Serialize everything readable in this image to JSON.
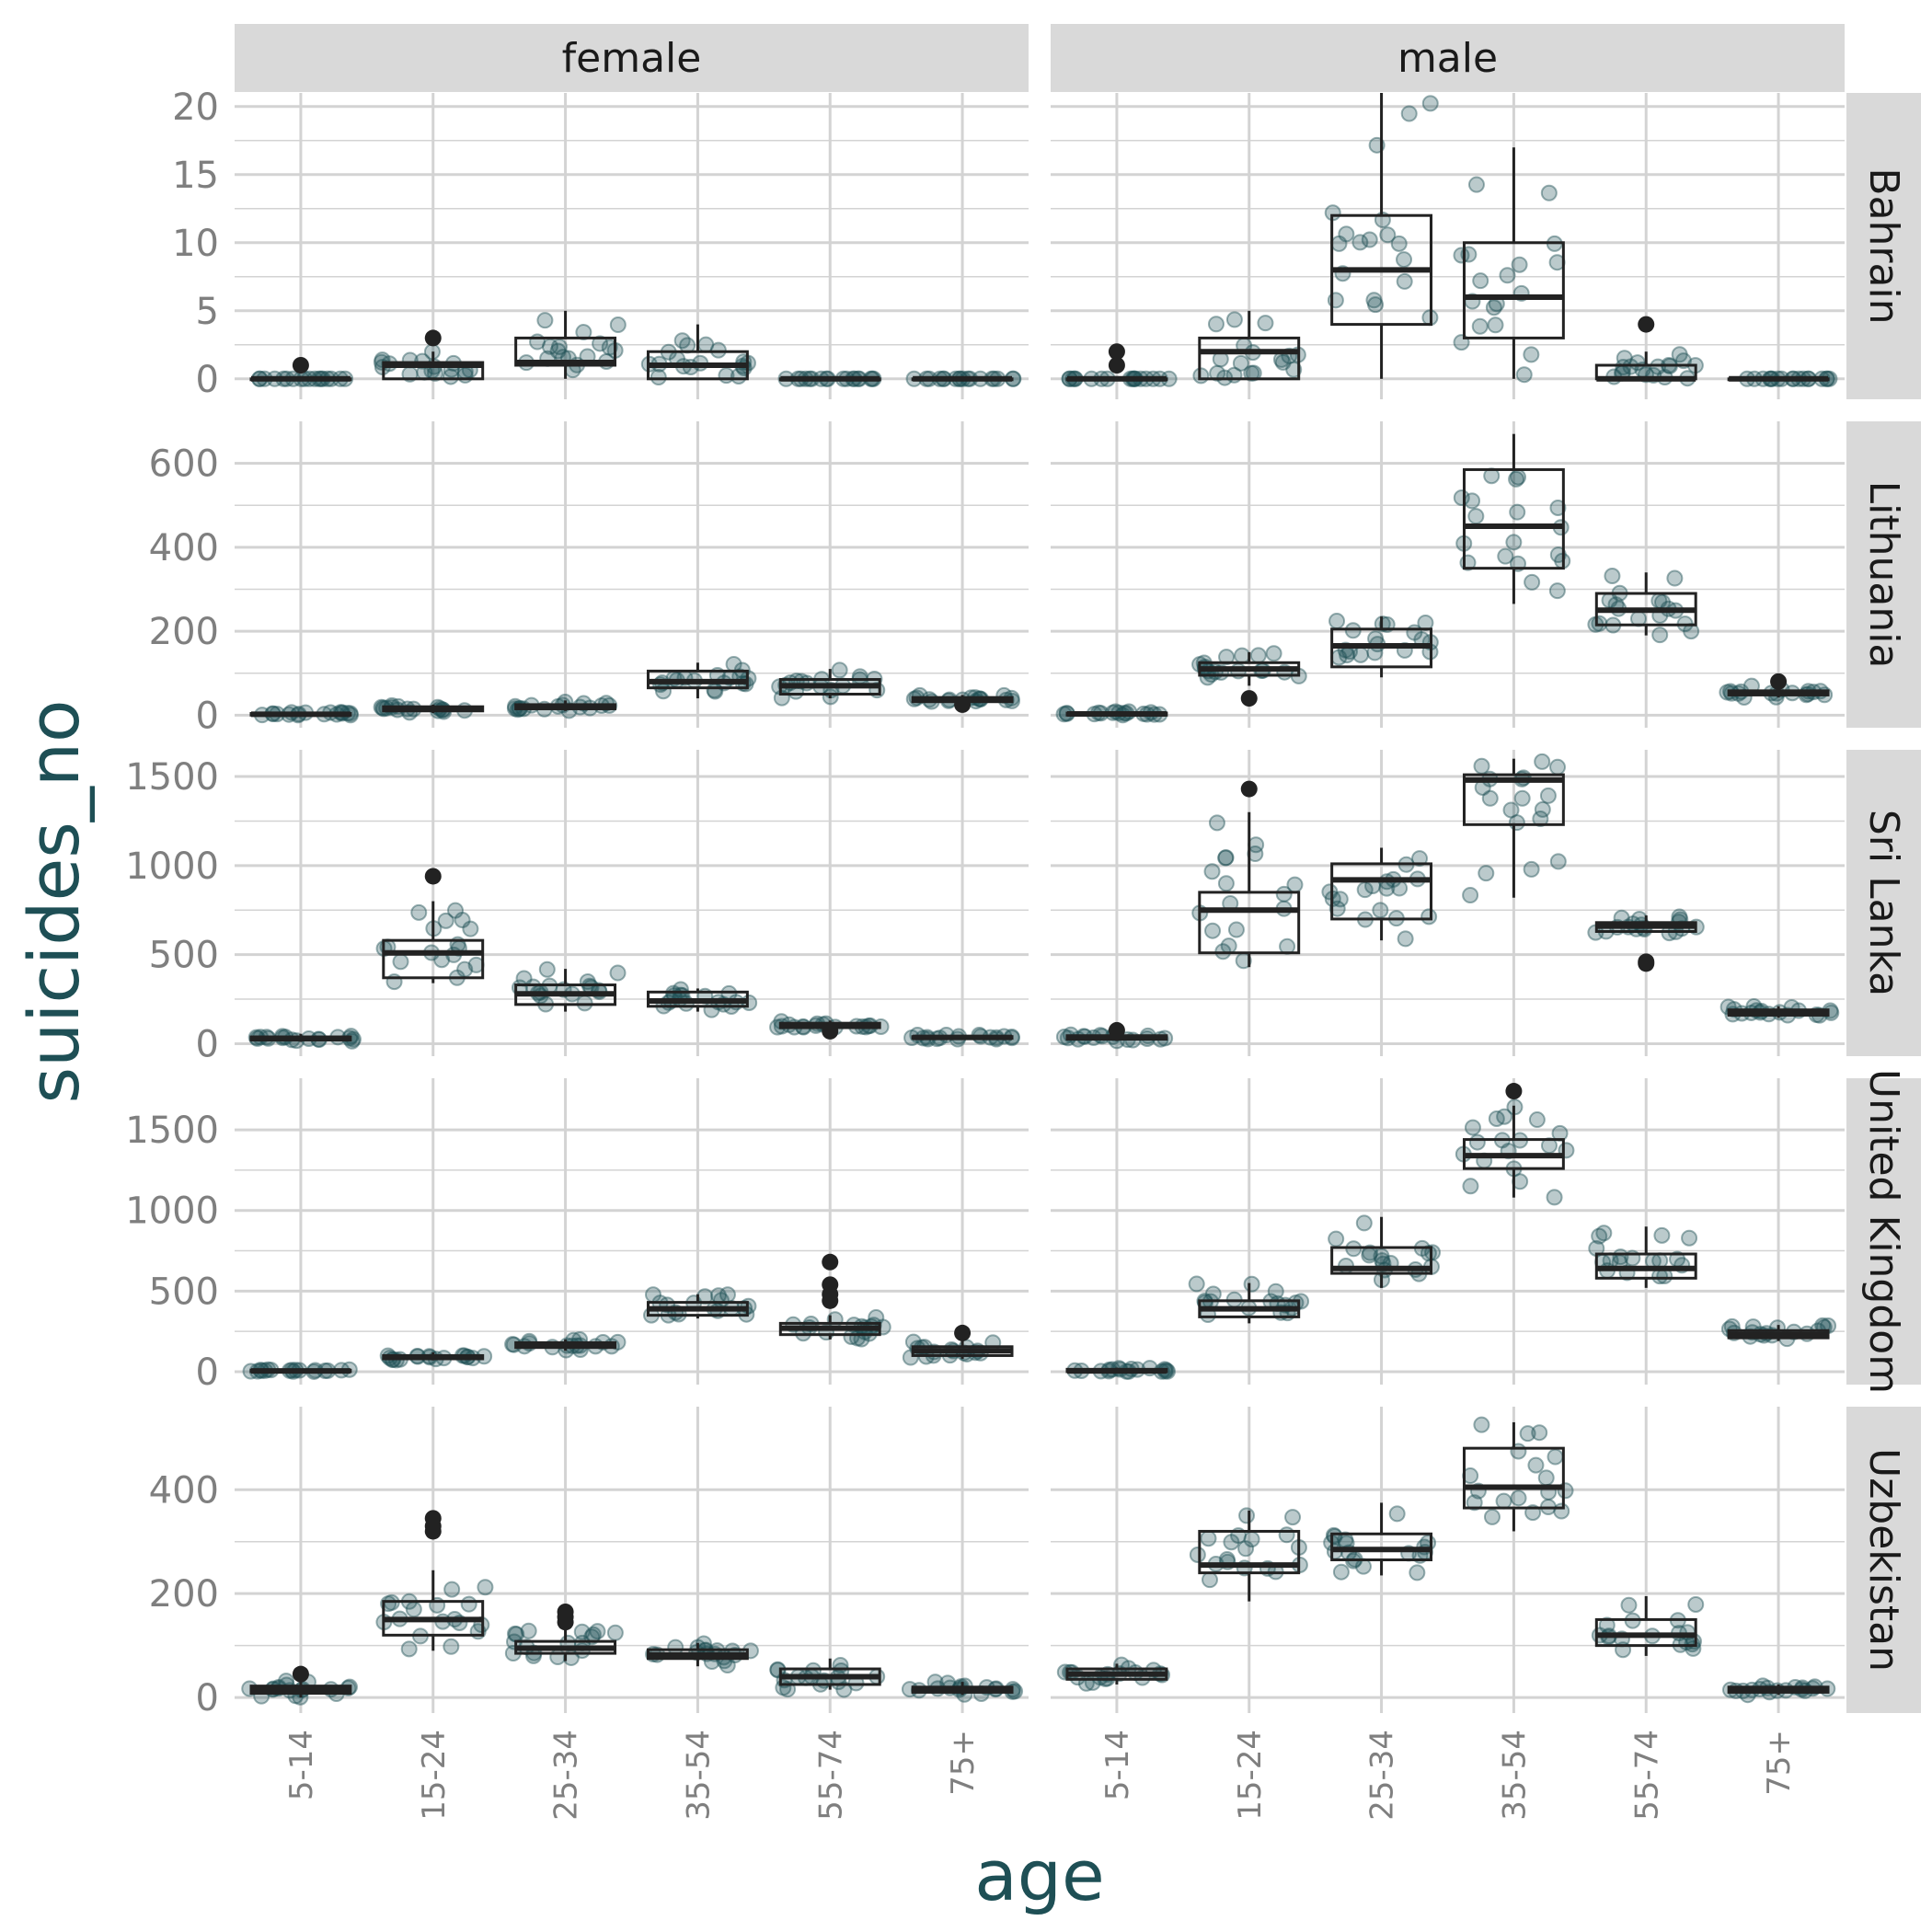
{
  "chart_data": {
    "type": "box",
    "xlabel": "age",
    "ylabel": "suicides_no",
    "categories": [
      "5-14",
      "15-24",
      "25-34",
      "35-54",
      "55-74",
      "75+"
    ],
    "columns": [
      "female",
      "male"
    ],
    "rows": [
      "Bahrain",
      "Lithuania",
      "Sri Lanka",
      "United Kingdom",
      "Uzbekistan"
    ],
    "colors": {
      "points": "#1e4f55",
      "box": "#222222",
      "strip": "#d9d9d9",
      "grid": "#d3d3d3"
    },
    "panels": [
      {
        "row": "Bahrain",
        "ylim": [
          -1.5,
          21
        ],
        "yticks": [
          0,
          5,
          10,
          15,
          20
        ],
        "female": [
          {
            "q1": 0,
            "median": 0,
            "q3": 0,
            "lo": 0,
            "hi": 0,
            "outliers": [
              1
            ]
          },
          {
            "q1": 0,
            "median": 1,
            "q3": 1.2,
            "lo": 0,
            "hi": 2,
            "outliers": [
              3
            ]
          },
          {
            "q1": 1,
            "median": 1.2,
            "q3": 3,
            "lo": 0,
            "hi": 5,
            "outliers": []
          },
          {
            "q1": 0,
            "median": 1,
            "q3": 2,
            "lo": 0,
            "hi": 4,
            "outliers": []
          },
          {
            "q1": 0,
            "median": 0,
            "q3": 0,
            "lo": 0,
            "hi": 0,
            "outliers": []
          },
          {
            "q1": 0,
            "median": 0,
            "q3": 0,
            "lo": 0,
            "hi": 0,
            "outliers": []
          }
        ],
        "male": [
          {
            "q1": 0,
            "median": 0,
            "q3": 0,
            "lo": 0,
            "hi": 0,
            "outliers": [
              1,
              2
            ]
          },
          {
            "q1": 0,
            "median": 2,
            "q3": 3,
            "lo": 0,
            "hi": 5,
            "outliers": []
          },
          {
            "q1": 4,
            "median": 8,
            "q3": 12,
            "lo": 0,
            "hi": 21,
            "outliers": []
          },
          {
            "q1": 3,
            "median": 6,
            "q3": 10,
            "lo": 0,
            "hi": 17,
            "outliers": []
          },
          {
            "q1": 0,
            "median": 0,
            "q3": 1,
            "lo": 0,
            "hi": 2,
            "outliers": [
              4
            ]
          },
          {
            "q1": 0,
            "median": 0,
            "q3": 0,
            "lo": 0,
            "hi": 0,
            "outliers": []
          }
        ]
      },
      {
        "row": "Lithuania",
        "ylim": [
          -30,
          700
        ],
        "yticks": [
          0,
          200,
          400,
          600
        ],
        "female": [
          {
            "q1": 0,
            "median": 2,
            "q3": 4,
            "lo": 0,
            "hi": 8,
            "outliers": []
          },
          {
            "q1": 10,
            "median": 15,
            "q3": 20,
            "lo": 5,
            "hi": 25,
            "outliers": []
          },
          {
            "q1": 15,
            "median": 20,
            "q3": 25,
            "lo": 10,
            "hi": 35,
            "outliers": []
          },
          {
            "q1": 65,
            "median": 80,
            "q3": 105,
            "lo": 40,
            "hi": 125,
            "outliers": []
          },
          {
            "q1": 50,
            "median": 70,
            "q3": 85,
            "lo": 40,
            "hi": 110,
            "outliers": []
          },
          {
            "q1": 32,
            "median": 38,
            "q3": 42,
            "lo": 30,
            "hi": 48,
            "outliers": [
              25
            ]
          }
        ],
        "male": [
          {
            "q1": 0,
            "median": 3,
            "q3": 5,
            "lo": 0,
            "hi": 10,
            "outliers": []
          },
          {
            "q1": 95,
            "median": 110,
            "q3": 125,
            "lo": 70,
            "hi": 150,
            "outliers": [
              40
            ]
          },
          {
            "q1": 115,
            "median": 165,
            "q3": 205,
            "lo": 90,
            "hi": 235,
            "outliers": []
          },
          {
            "q1": 350,
            "median": 450,
            "q3": 585,
            "lo": 265,
            "hi": 670,
            "outliers": []
          },
          {
            "q1": 215,
            "median": 250,
            "q3": 290,
            "lo": 190,
            "hi": 340,
            "outliers": []
          },
          {
            "q1": 48,
            "median": 52,
            "q3": 58,
            "lo": 42,
            "hi": 70,
            "outliers": [
              80
            ]
          }
        ]
      },
      {
        "row": "Sri Lanka",
        "ylim": [
          -70,
          1650
        ],
        "yticks": [
          0,
          500,
          1000,
          1500
        ],
        "female": [
          {
            "q1": 20,
            "median": 30,
            "q3": 38,
            "lo": 10,
            "hi": 55,
            "outliers": []
          },
          {
            "q1": 370,
            "median": 510,
            "q3": 580,
            "lo": 340,
            "hi": 800,
            "outliers": [
              940
            ]
          },
          {
            "q1": 220,
            "median": 280,
            "q3": 330,
            "lo": 180,
            "hi": 420,
            "outliers": []
          },
          {
            "q1": 210,
            "median": 240,
            "q3": 290,
            "lo": 180,
            "hi": 310,
            "outliers": []
          },
          {
            "q1": 90,
            "median": 105,
            "q3": 115,
            "lo": 80,
            "hi": 130,
            "outliers": [
              70
            ]
          },
          {
            "q1": 30,
            "median": 35,
            "q3": 40,
            "lo": 25,
            "hi": 50,
            "outliers": []
          }
        ],
        "male": [
          {
            "q1": 25,
            "median": 35,
            "q3": 45,
            "lo": 15,
            "hi": 60,
            "outliers": [
              75
            ]
          },
          {
            "q1": 510,
            "median": 750,
            "q3": 850,
            "lo": 430,
            "hi": 1300,
            "outliers": [
              1430
            ]
          },
          {
            "q1": 700,
            "median": 920,
            "q3": 1010,
            "lo": 580,
            "hi": 1100,
            "outliers": []
          },
          {
            "q1": 1230,
            "median": 1480,
            "q3": 1510,
            "lo": 820,
            "hi": 1600,
            "outliers": []
          },
          {
            "q1": 630,
            "median": 660,
            "q3": 680,
            "lo": 620,
            "hi": 720,
            "outliers": [
              450,
              460
            ]
          },
          {
            "q1": 160,
            "median": 175,
            "q3": 190,
            "lo": 145,
            "hi": 210,
            "outliers": []
          }
        ]
      },
      {
        "row": "United Kingdom",
        "ylim": [
          -80,
          1820
        ],
        "yticks": [
          0,
          500,
          1000,
          1500
        ],
        "female": [
          {
            "q1": 0,
            "median": 5,
            "q3": 10,
            "lo": 0,
            "hi": 15,
            "outliers": []
          },
          {
            "q1": 80,
            "median": 90,
            "q3": 100,
            "lo": 70,
            "hi": 120,
            "outliers": []
          },
          {
            "q1": 150,
            "median": 165,
            "q3": 180,
            "lo": 130,
            "hi": 200,
            "outliers": []
          },
          {
            "q1": 350,
            "median": 390,
            "q3": 430,
            "lo": 330,
            "hi": 480,
            "outliers": []
          },
          {
            "q1": 230,
            "median": 270,
            "q3": 300,
            "lo": 200,
            "hi": 350,
            "outliers": [
              440,
              480,
              540,
              680
            ]
          },
          {
            "q1": 100,
            "median": 130,
            "q3": 155,
            "lo": 80,
            "hi": 210,
            "outliers": [
              240
            ]
          }
        ],
        "male": [
          {
            "q1": 0,
            "median": 5,
            "q3": 15,
            "lo": 0,
            "hi": 25,
            "outliers": []
          },
          {
            "q1": 340,
            "median": 390,
            "q3": 440,
            "lo": 300,
            "hi": 550,
            "outliers": []
          },
          {
            "q1": 610,
            "median": 640,
            "q3": 770,
            "lo": 520,
            "hi": 960,
            "outliers": []
          },
          {
            "q1": 1260,
            "median": 1340,
            "q3": 1440,
            "lo": 1080,
            "hi": 1650,
            "outliers": [
              1740
            ]
          },
          {
            "q1": 580,
            "median": 640,
            "q3": 730,
            "lo": 520,
            "hi": 900,
            "outliers": []
          },
          {
            "q1": 210,
            "median": 230,
            "q3": 255,
            "lo": 190,
            "hi": 290,
            "outliers": []
          }
        ]
      },
      {
        "row": "Uzbekistan",
        "ylim": [
          -30,
          560
        ],
        "yticks": [
          0,
          200,
          400
        ],
        "female": [
          {
            "q1": 8,
            "median": 15,
            "q3": 22,
            "lo": 0,
            "hi": 35,
            "outliers": [
              45
            ]
          },
          {
            "q1": 120,
            "median": 150,
            "q3": 185,
            "lo": 90,
            "hi": 245,
            "outliers": [
              320,
              330,
              345
            ]
          },
          {
            "q1": 85,
            "median": 95,
            "q3": 108,
            "lo": 70,
            "hi": 130,
            "outliers": [
              145,
              155,
              165
            ]
          },
          {
            "q1": 75,
            "median": 82,
            "q3": 92,
            "lo": 60,
            "hi": 105,
            "outliers": []
          },
          {
            "q1": 25,
            "median": 40,
            "q3": 55,
            "lo": 15,
            "hi": 75,
            "outliers": []
          },
          {
            "q1": 10,
            "median": 15,
            "q3": 20,
            "lo": 5,
            "hi": 30,
            "outliers": []
          }
        ],
        "male": [
          {
            "q1": 35,
            "median": 45,
            "q3": 55,
            "lo": 25,
            "hi": 65,
            "outliers": []
          },
          {
            "q1": 240,
            "median": 255,
            "q3": 320,
            "lo": 185,
            "hi": 360,
            "outliers": []
          },
          {
            "q1": 265,
            "median": 285,
            "q3": 315,
            "lo": 235,
            "hi": 375,
            "outliers": []
          },
          {
            "q1": 365,
            "median": 405,
            "q3": 480,
            "lo": 320,
            "hi": 530,
            "outliers": []
          },
          {
            "q1": 100,
            "median": 120,
            "q3": 150,
            "lo": 80,
            "hi": 195,
            "outliers": []
          },
          {
            "q1": 10,
            "median": 15,
            "q3": 20,
            "lo": 5,
            "hi": 25,
            "outliers": []
          }
        ]
      }
    ]
  }
}
